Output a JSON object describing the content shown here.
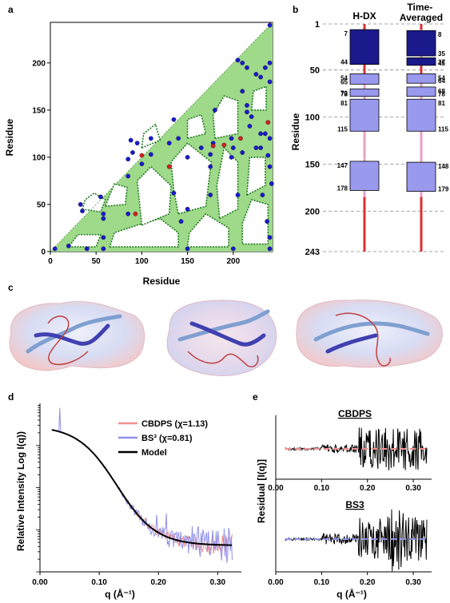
{
  "panels": {
    "a": {
      "letter": "a",
      "xlabel": "Residue",
      "ylabel": "Residue",
      "ticks": [
        "0",
        "50",
        "100",
        "150",
        "200"
      ],
      "xticks": [
        "0",
        "50",
        "100",
        "150",
        "200"
      ],
      "max_residue": 243,
      "fill_color": "#9fd98a",
      "contour_color": "#1f7a1f",
      "point_color_blue": "#1a1acc",
      "point_color_red": "#d02020",
      "blue_points": [
        [
          5,
          3
        ],
        [
          20,
          6
        ],
        [
          40,
          3
        ],
        [
          58,
          3
        ],
        [
          58,
          15
        ],
        [
          58,
          40
        ],
        [
          35,
          43
        ],
        [
          33,
          50
        ],
        [
          55,
          58
        ],
        [
          58,
          35
        ],
        [
          85,
          40
        ],
        [
          85,
          80
        ],
        [
          85,
          98
        ],
        [
          90,
          105
        ],
        [
          88,
          118
        ],
        [
          95,
          115
        ],
        [
          100,
          93
        ],
        [
          110,
          103
        ],
        [
          110,
          120
        ],
        [
          130,
          115
        ],
        [
          135,
          140
        ],
        [
          135,
          62
        ],
        [
          150,
          100
        ],
        [
          165,
          110
        ],
        [
          150,
          3
        ],
        [
          175,
          60
        ],
        [
          175,
          103
        ],
        [
          175,
          90
        ],
        [
          178,
          115
        ],
        [
          180,
          150
        ],
        [
          198,
          100
        ],
        [
          198,
          120
        ],
        [
          200,
          110
        ],
        [
          200,
          3
        ],
        [
          205,
          203
        ],
        [
          210,
          200
        ],
        [
          215,
          195
        ],
        [
          210,
          170
        ],
        [
          215,
          155
        ],
        [
          215,
          148
        ],
        [
          220,
          143
        ],
        [
          218,
          133
        ],
        [
          225,
          188
        ],
        [
          230,
          185
        ],
        [
          230,
          125
        ],
        [
          230,
          110
        ],
        [
          235,
          125
        ],
        [
          238,
          102
        ],
        [
          240,
          15
        ],
        [
          240,
          3
        ],
        [
          240,
          90
        ],
        [
          240,
          120
        ],
        [
          240,
          180
        ],
        [
          240,
          200
        ],
        [
          240,
          240
        ],
        [
          235,
          195
        ],
        [
          225,
          110
        ],
        [
          210,
          105
        ],
        [
          150,
          45
        ],
        [
          143,
          32
        ],
        [
          205,
          60
        ],
        [
          232,
          60
        ],
        [
          237,
          32
        ],
        [
          242,
          72
        ],
        [
          140,
          120
        ]
      ],
      "red_points": [
        [
          100,
          102
        ],
        [
          93,
          40
        ],
        [
          130,
          90
        ],
        [
          178,
          112
        ],
        [
          190,
          113
        ],
        [
          208,
          120
        ],
        [
          238,
          137
        ]
      ]
    },
    "b": {
      "letter": "b",
      "col1": "H-DX",
      "col2": "Time-\nAveraged",
      "ylabel": "Residue",
      "yticks": [
        "1",
        "50",
        "100",
        "150",
        "200",
        "243"
      ],
      "ytick_values": [
        1,
        50,
        100,
        150,
        200,
        243
      ],
      "dark_color": "#1a1a8c",
      "light_color": "#9999ee",
      "coil_color": "#e8a0c8",
      "loop_color": "#d83030",
      "hdx_blocks": [
        {
          "start": 7,
          "end": 44,
          "style": "dark",
          "top_label": "7",
          "bottom_label": "44"
        },
        {
          "start": 54,
          "end": 65,
          "style": "light",
          "top_label": "54",
          "bottom_label": "65"
        },
        {
          "start": 70,
          "end": 78,
          "style": "light",
          "top_label": "70",
          "bottom_label": "78"
        },
        {
          "start": 81,
          "end": 115,
          "style": "light",
          "top_label": "81",
          "bottom_label": "115"
        },
        {
          "start": 147,
          "end": 178,
          "style": "light",
          "top_label": "147",
          "bottom_label": "178"
        }
      ],
      "ta_blocks": [
        {
          "start": 8,
          "end": 35,
          "style": "dark",
          "top_label": "8",
          "bottom_label": "35"
        },
        {
          "start": 37,
          "end": 45,
          "style": "dark",
          "top_label": "37",
          "bottom_label": "45"
        },
        {
          "start": 54,
          "end": 64,
          "style": "light",
          "top_label": "54",
          "bottom_label": "64"
        },
        {
          "start": 68,
          "end": 78,
          "style": "light",
          "top_label": "68",
          "bottom_label": "78"
        },
        {
          "start": 81,
          "end": 115,
          "style": "light",
          "top_label": "81",
          "bottom_label": "115"
        },
        {
          "start": 148,
          "end": 179,
          "style": "light",
          "top_label": "148",
          "bottom_label": "179"
        }
      ]
    },
    "c": {
      "letter": "c",
      "views": [
        "view-1",
        "view-2",
        "view-3"
      ]
    },
    "d": {
      "letter": "d",
      "ylabel": "Relative Intensity Log I(q))",
      "xlabel": "q (Å⁻¹)",
      "xticks": [
        "0.00",
        "0.10",
        "0.20",
        "0.30"
      ],
      "xtick_values": [
        0.0,
        0.1,
        0.2,
        0.3
      ],
      "xlim": [
        0.0,
        0.34
      ],
      "legend": [
        {
          "label": "CBDPS (χ=1.13)",
          "color": "#f09090"
        },
        {
          "label": "BS³ (χ=0.81)",
          "color": "#9090e8"
        },
        {
          "label": "Model",
          "color": "#000000"
        }
      ]
    },
    "e": {
      "letter": "e",
      "ylabel": "Residual [I(q)]",
      "xlabel": "q (Å⁻¹)",
      "xticks": [
        "0.00",
        "0.10",
        "0.20",
        "0.30"
      ],
      "xtick_values": [
        0.0,
        0.1,
        0.2,
        0.3
      ],
      "xlim": [
        0.0,
        0.34
      ],
      "top_title": "CBDPS",
      "bottom_title": "BS3",
      "top_dash_color": "#f09090",
      "bottom_dash_color": "#9090e8"
    }
  },
  "chart_data": [
    {
      "type": "scatter",
      "panel": "a",
      "title": "",
      "xlabel": "Residue",
      "ylabel": "Residue",
      "xlim": [
        0,
        243
      ],
      "ylim": [
        0,
        243
      ]
    },
    {
      "type": "line",
      "panel": "d",
      "title": "",
      "xlabel": "q (Å⁻¹)",
      "ylabel": "Relative Intensity Log I(q))",
      "xlim": [
        0.0,
        0.34
      ],
      "series": [
        {
          "name": "CBDPS (χ=1.13)"
        },
        {
          "name": "BS³ (χ=0.81)"
        },
        {
          "name": "Model"
        }
      ]
    },
    {
      "type": "line",
      "panel": "e",
      "title": "",
      "xlabel": "q (Å⁻¹)",
      "ylabel": "Residual [I(q)]",
      "xlim": [
        0.0,
        0.34
      ],
      "series": [
        {
          "name": "CBDPS"
        },
        {
          "name": "BS3"
        }
      ]
    }
  ]
}
